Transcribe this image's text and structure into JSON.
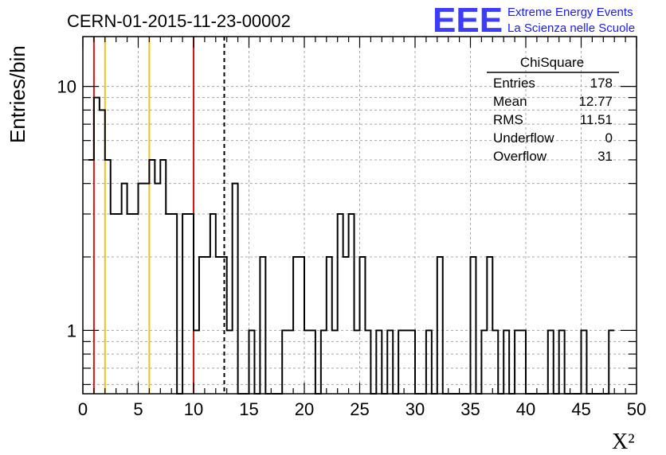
{
  "title": "CERN-01-2015-11-23-00002",
  "logo": {
    "letters": "EEE",
    "line1": "Extreme Energy Events",
    "line2": "La Scienza nelle Scuole",
    "color": "#1a1aff"
  },
  "chart_data": {
    "type": "histogram",
    "xlabel": "X²",
    "ylabel": "Entries/bin",
    "xlim": [
      0,
      50
    ],
    "ylim": [
      0.55,
      16
    ],
    "yscale": "log",
    "grid": true,
    "bin_width": 0.5,
    "bin_start": 0.5,
    "x_ticks": [
      0,
      5,
      10,
      15,
      20,
      25,
      30,
      35,
      40,
      45,
      50
    ],
    "y_ticks": [
      {
        "value": 1,
        "label": "1"
      },
      {
        "value": 10,
        "label": "10"
      }
    ],
    "values": [
      5,
      9,
      8,
      5,
      3,
      3,
      4,
      3,
      3,
      4,
      4,
      5,
      4,
      5,
      3,
      3,
      0,
      3,
      3,
      1,
      2,
      2,
      3,
      2,
      2,
      1,
      4,
      0,
      0,
      1,
      0,
      2,
      0,
      0,
      0,
      1,
      1,
      2,
      2,
      1,
      1,
      0,
      1,
      2,
      1,
      3,
      2,
      3,
      1,
      2,
      1,
      0,
      1,
      0,
      1,
      0,
      1,
      1,
      1,
      0,
      0,
      1,
      0,
      2,
      0,
      0,
      0,
      0,
      0,
      2,
      0,
      1,
      2,
      1,
      0,
      1,
      0,
      1,
      1,
      0,
      0,
      0,
      0,
      1,
      0,
      1,
      0,
      0,
      0,
      1,
      0,
      0,
      0,
      0,
      1
    ],
    "series_color": "#000000",
    "vertical_lines": [
      {
        "x": 1,
        "color": "#dd1111",
        "style": "solid"
      },
      {
        "x": 2,
        "color": "#f0c020",
        "style": "solid"
      },
      {
        "x": 6,
        "color": "#f0c020",
        "style": "solid"
      },
      {
        "x": 10,
        "color": "#dd1111",
        "style": "solid"
      },
      {
        "x": 12.77,
        "color": "#000000",
        "style": "dashed"
      }
    ],
    "stats_box": {
      "title": "ChiSquare",
      "rows": [
        {
          "label": "Entries",
          "value": "178"
        },
        {
          "label": "Mean",
          "value": "12.77"
        },
        {
          "label": "RMS",
          "value": "11.51"
        },
        {
          "label": "Underflow",
          "value": "0"
        },
        {
          "label": "Overflow",
          "value": "31"
        }
      ]
    }
  }
}
